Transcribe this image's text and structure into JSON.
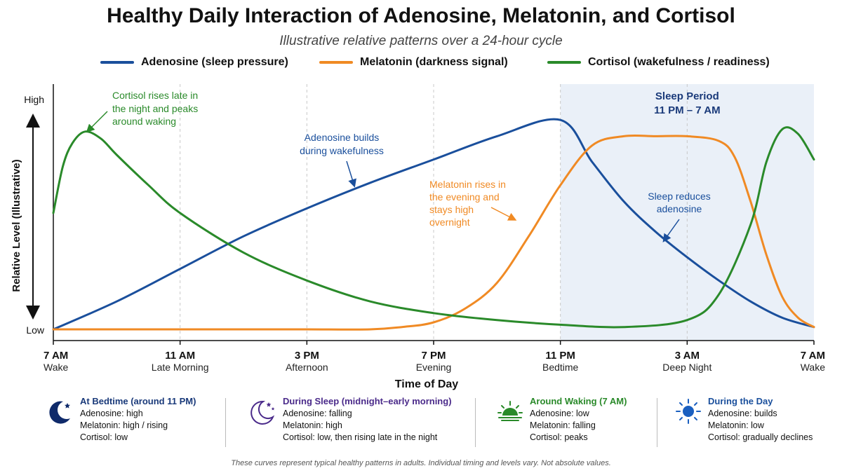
{
  "title": "Healthy Daily Interaction of Adenosine, Melatonin, and Cortisol",
  "subtitle": "Illustrative relative patterns over a 24-hour cycle",
  "colors": {
    "adenosine": "#1a4f9c",
    "melatonin": "#f08a24",
    "cortisol": "#2a8a2a",
    "sleep_band": "#eaf0f8"
  },
  "legend": [
    {
      "label": "Adenosine (sleep pressure)",
      "color": "#1a4f9c"
    },
    {
      "label": "Melatonin (darkness signal)",
      "color": "#f08a24"
    },
    {
      "label": "Cortisol (wakefulness / readiness)",
      "color": "#2a8a2a"
    }
  ],
  "chart_data": {
    "type": "line",
    "xlabel": "Time of Day",
    "ylabel": "Relative Level (Illustrative)",
    "y_tick_labels": {
      "high": "High",
      "low": "Low"
    },
    "xlim": [
      0,
      24
    ],
    "ylim": [
      0,
      1
    ],
    "x_ticks": [
      {
        "x": 0,
        "time": "7 AM",
        "label": "Wake"
      },
      {
        "x": 4,
        "time": "11 AM",
        "label": "Late Morning"
      },
      {
        "x": 8,
        "time": "3 PM",
        "label": "Afternoon"
      },
      {
        "x": 12,
        "time": "7 PM",
        "label": "Evening"
      },
      {
        "x": 16,
        "time": "11 PM",
        "label": "Bedtime"
      },
      {
        "x": 20,
        "time": "3 AM",
        "label": "Deep Night"
      },
      {
        "x": 24,
        "time": "7 AM",
        "label": "Wake"
      }
    ],
    "sleep_period": {
      "start": 16,
      "end": 24,
      "label": "Sleep Period",
      "range_label": "11 PM – 7 AM"
    },
    "series": [
      {
        "name": "Adenosine (sleep pressure)",
        "key": "adenosine",
        "x": [
          0,
          2,
          4,
          6,
          8,
          10,
          12,
          14,
          16,
          17,
          18,
          19,
          20,
          21,
          22,
          23,
          24
        ],
        "y": [
          0.0,
          0.12,
          0.26,
          0.4,
          0.52,
          0.63,
          0.73,
          0.83,
          0.9,
          0.72,
          0.55,
          0.42,
          0.31,
          0.21,
          0.12,
          0.05,
          0.01
        ]
      },
      {
        "name": "Melatonin (darkness signal)",
        "key": "melatonin",
        "x": [
          0,
          2,
          4,
          6,
          8,
          10,
          11,
          12,
          13,
          14,
          15,
          16,
          17,
          18,
          19,
          20,
          21,
          21.5,
          22,
          22.5,
          23,
          23.5,
          24
        ],
        "y": [
          0.0,
          0.0,
          0.0,
          0.0,
          0.0,
          0.0,
          0.01,
          0.03,
          0.09,
          0.2,
          0.4,
          0.62,
          0.79,
          0.83,
          0.83,
          0.83,
          0.81,
          0.74,
          0.55,
          0.32,
          0.14,
          0.05,
          0.01
        ]
      },
      {
        "name": "Cortisol (wakefulness / readiness)",
        "key": "cortisol",
        "x": [
          0,
          0.3,
          0.6,
          1,
          1.5,
          2,
          3,
          4,
          6,
          8,
          10,
          12,
          14,
          16,
          18,
          20,
          21,
          22,
          22.5,
          23,
          23.5,
          24
        ],
        "y": [
          0.5,
          0.7,
          0.8,
          0.85,
          0.82,
          0.75,
          0.62,
          0.5,
          0.33,
          0.21,
          0.12,
          0.07,
          0.04,
          0.02,
          0.01,
          0.04,
          0.15,
          0.45,
          0.72,
          0.86,
          0.84,
          0.73
        ]
      }
    ],
    "annotations": [
      {
        "series": "cortisol",
        "lines": [
          "Cortisol rises late in",
          "the night and peaks",
          "around waking"
        ]
      },
      {
        "series": "adenosine",
        "lines": [
          "Adenosine builds",
          "during wakefulness"
        ]
      },
      {
        "series": "melatonin",
        "lines": [
          "Melatonin rises in",
          "the evening and",
          "stays high",
          "overnight"
        ]
      },
      {
        "series": "adenosine",
        "lines": [
          "Sleep reduces",
          "adenosine"
        ]
      }
    ]
  },
  "panels": [
    {
      "icon": "moon-star-icon",
      "heading": "At Bedtime (around 11 PM)",
      "heading_color": "#1a3a7a",
      "rows": [
        "Adenosine:  high",
        "Melatonin:  high / rising",
        "Cortisol:  low"
      ]
    },
    {
      "icon": "moon-stars-outline-icon",
      "heading": "During Sleep (midnight–early morning)",
      "heading_color": "#4a2a8a",
      "rows": [
        "Adenosine:  falling",
        "Melatonin:  high",
        "Cortisol:  low, then rising late in the night"
      ]
    },
    {
      "icon": "sunrise-icon",
      "heading": "Around Waking (7 AM)",
      "heading_color": "#2a8a2a",
      "rows": [
        "Adenosine:  low",
        "Melatonin:  falling",
        "Cortisol:  peaks"
      ]
    },
    {
      "icon": "sun-icon",
      "heading": "During the Day",
      "heading_color": "#1a4f9c",
      "rows": [
        "Adenosine:  builds",
        "Melatonin:  low",
        "Cortisol:  gradually declines"
      ]
    }
  ],
  "footer": "These curves represent typical healthy patterns in adults. Individual timing and levels vary. Not absolute values."
}
